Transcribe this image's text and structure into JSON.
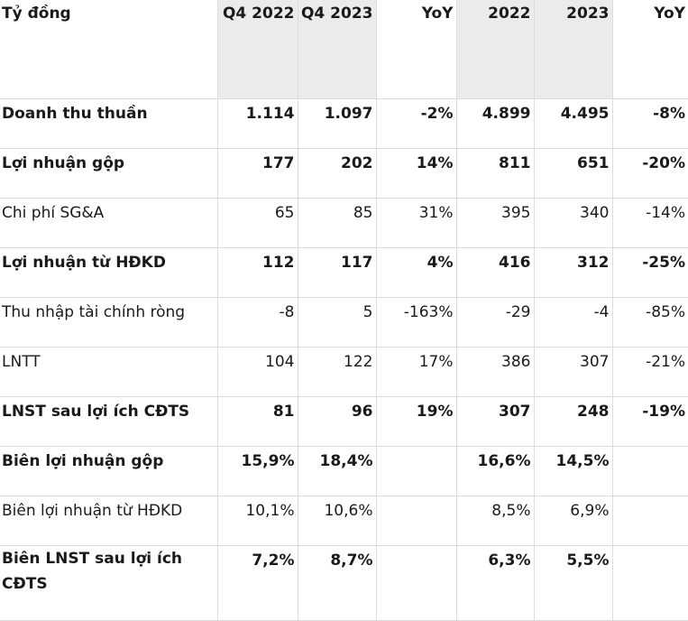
{
  "header": [
    "Tỷ đồng",
    "Q4 2022",
    "Q4 2023",
    "YoY",
    "2022",
    "2023",
    "YoY"
  ],
  "rows": [
    {
      "label": "Doanh thu thuần",
      "values": [
        "1.114",
        "1.097",
        "-2%",
        "4.899",
        "4.495",
        "-8%"
      ],
      "bold": true
    },
    {
      "label": "Lợi nhuận gộp",
      "values": [
        "177",
        "202",
        "14%",
        "811",
        "651",
        "-20%"
      ],
      "bold": true
    },
    {
      "label": "Chi phí SG&A",
      "values": [
        "65",
        "85",
        "31%",
        "395",
        "340",
        "-14%"
      ],
      "bold": false
    },
    {
      "label": "Lợi nhuận từ HĐKD",
      "values": [
        "112",
        "117",
        "4%",
        "416",
        "312",
        "-25%"
      ],
      "bold": true
    },
    {
      "label": "Thu nhập tài chính ròng",
      "values": [
        "-8",
        "5",
        "-163%",
        "-29",
        "-4",
        "-85%"
      ],
      "bold": false
    },
    {
      "label": "LNTT",
      "values": [
        "104",
        "122",
        "17%",
        "386",
        "307",
        "-21%"
      ],
      "bold": false
    },
    {
      "label": "LNST sau lợi ích CĐTS",
      "values": [
        "81",
        "96",
        "19%",
        "307",
        "248",
        "-19%"
      ],
      "bold": true
    },
    {
      "label": "Biên lợi nhuận gộp",
      "values": [
        "15,9%",
        "18,4%",
        "",
        "16,6%",
        "14,5%",
        ""
      ],
      "bold": true
    },
    {
      "label": "Biên lợi nhuận từ HĐKD",
      "values": [
        "10,1%",
        "10,6%",
        "",
        "8,5%",
        "6,9%",
        ""
      ],
      "bold": false
    },
    {
      "label": "Biên LNST sau lợi ích CĐTS",
      "values": [
        "7,2%",
        "8,7%",
        "",
        "6,3%",
        "5,5%",
        ""
      ],
      "bold": true
    }
  ]
}
